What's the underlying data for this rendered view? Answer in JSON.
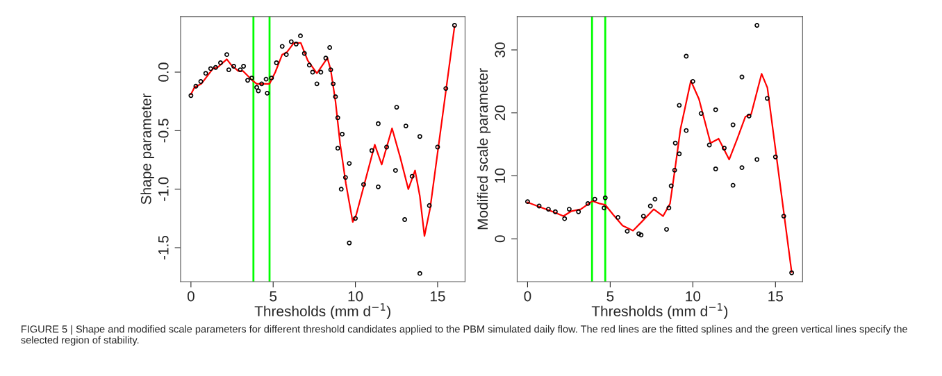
{
  "chart_data": [
    {
      "type": "scatter",
      "xlabel": "Thresholds (mm d$^{−1}$)",
      "ylabel": "Shape parameter",
      "xlim": [
        -0.63,
        16.67
      ],
      "ylim": [
        -1.79,
        0.475
      ],
      "xticks": [
        0,
        5,
        10,
        15
      ],
      "yticks": [
        {
          "value": -1.5,
          "label": "-1.5"
        },
        {
          "value": -1.0,
          "label": "-1.0"
        },
        {
          "value": -0.5,
          "label": "-0.5"
        },
        {
          "value": 0.0,
          "label": "0.0"
        }
      ],
      "grid": false,
      "legend": false,
      "series": [
        {
          "marker": "circle",
          "color": "#000000",
          "x": [
            0,
            0.3,
            0.6,
            0.9,
            1.2,
            1.5,
            1.8,
            2.18,
            2.3,
            2.6,
            3.0,
            3.2,
            3.45,
            3.7,
            4.0,
            4.1,
            4.3,
            4.57,
            4.64,
            4.9,
            5.2,
            5.55,
            5.8,
            6.1,
            6.4,
            6.66,
            6.9,
            7.2,
            7.4,
            7.66,
            7.9,
            8.2,
            8.44,
            8.5,
            8.65,
            8.79,
            8.93,
            8.93,
            9.2,
            9.14,
            9.4,
            9.63,
            9.63,
            10.0,
            10.5,
            11.0,
            11.39,
            11.39,
            11.9,
            12.51,
            12.44,
            13.07,
            13.0,
            13.45,
            13.92,
            13.92,
            14.5,
            15.0,
            15.5,
            16.03
          ],
          "values": [
            -0.2,
            -0.12,
            -0.08,
            -0.01,
            0.03,
            0.04,
            0.08,
            0.15,
            0.02,
            0.05,
            0.02,
            0.05,
            -0.07,
            -0.05,
            -0.13,
            -0.16,
            -0.1,
            -0.06,
            -0.18,
            -0.05,
            0.08,
            0.22,
            0.15,
            0.26,
            0.24,
            0.31,
            0.16,
            0.06,
            0.0,
            -0.1,
            0.0,
            0.12,
            0.21,
            0.02,
            -0.1,
            -0.21,
            -0.39,
            -0.65,
            -0.53,
            -1.0,
            -0.9,
            -0.78,
            -1.46,
            -1.25,
            -0.96,
            -0.67,
            -0.44,
            -0.98,
            -0.64,
            -0.3,
            -0.84,
            -0.46,
            -1.26,
            -0.89,
            -0.55,
            -1.72,
            -1.14,
            -0.64,
            -0.14,
            0.4
          ]
        },
        {
          "type": "line",
          "marker": "none",
          "color": "#ff0000",
          "x": [
            0,
            0.21,
            0.63,
            1.34,
            1.62,
            2.18,
            2.46,
            2.88,
            3.16,
            3.73,
            4.0,
            4.57,
            4.78,
            5.13,
            5.55,
            5.83,
            6.26,
            6.68,
            7.1,
            7.66,
            8.3,
            8.5,
            8.79,
            9.07,
            9.42,
            9.84,
            10.05,
            11.18,
            11.6,
            12.23,
            12.73,
            13.22,
            13.63,
            13.92,
            14.2,
            14.55,
            16.03
          ],
          "values": [
            -0.19,
            -0.13,
            -0.1,
            0.03,
            0.04,
            0.11,
            0.06,
            0.01,
            0.01,
            -0.07,
            -0.1,
            -0.1,
            -0.1,
            0.0,
            0.15,
            0.17,
            0.25,
            0.25,
            0.1,
            -0.01,
            0.12,
            0.02,
            -0.25,
            -0.61,
            -0.95,
            -1.28,
            -1.22,
            -0.62,
            -0.79,
            -0.48,
            -0.73,
            -1.0,
            -0.84,
            -1.06,
            -1.4,
            -1.16,
            0.39
          ]
        }
      ],
      "ref_lines": [
        {
          "axis": "x",
          "value": 3.8,
          "color": "#00ff00"
        },
        {
          "axis": "x",
          "value": 4.78,
          "color": "#00ff00"
        }
      ],
      "annotations": [
        "FIGURE 5 | Shape and modified scale parameters for different threshold candidates applied to the PBM simulated daily flow. The red lines are the fitted splines and the green vertical lines specify the selected region of stability."
      ]
    },
    {
      "type": "scatter",
      "xlabel": "Thresholds (mm d$^{−1}$)",
      "ylabel": "Modified scale parameter",
      "xlim": [
        -0.63,
        16.64
      ],
      "ylim": [
        -6.8,
        35.3
      ],
      "xticks": [
        0,
        5,
        10,
        15
      ],
      "yticks": [
        0,
        10,
        20,
        30
      ],
      "grid": false,
      "legend": false,
      "series": [
        {
          "marker": "circle",
          "color": "#000000",
          "x": [
            0,
            0.7,
            1.26,
            1.68,
            2.24,
            2.52,
            3.08,
            3.65,
            4.07,
            4.63,
            4.7,
            5.47,
            6.03,
            6.73,
            6.87,
            7.01,
            7.43,
            7.71,
            8.41,
            8.55,
            8.69,
            8.9,
            8.94,
            9.18,
            9.18,
            9.6,
            9.6,
            10.0,
            10.5,
            11.0,
            11.38,
            11.38,
            11.9,
            12.43,
            12.43,
            12.97,
            12.97,
            13.4,
            13.88,
            13.88,
            14.5,
            15.0,
            15.5,
            15.98
          ],
          "values": [
            5.9,
            5.2,
            4.7,
            4.3,
            3.2,
            4.7,
            4.3,
            5.6,
            6.3,
            4.9,
            6.5,
            3.4,
            1.2,
            0.8,
            0.6,
            3.6,
            5.2,
            6.3,
            1.5,
            4.9,
            8.4,
            10.9,
            15.2,
            13.5,
            21.2,
            17.2,
            29.0,
            25.0,
            19.9,
            14.9,
            11.1,
            20.5,
            14.4,
            8.5,
            18.1,
            11.3,
            25.7,
            19.5,
            12.6,
            33.9,
            22.3,
            13.0,
            3.6,
            -5.4
          ]
        },
        {
          "type": "line",
          "marker": "none",
          "color": "#ff0000",
          "x": [
            0,
            0.7,
            1.54,
            2.17,
            2.66,
            3.22,
            3.92,
            4.35,
            4.7,
            5.19,
            5.75,
            6.38,
            6.87,
            7.64,
            8.2,
            8.62,
            8.9,
            9.25,
            9.88,
            10.37,
            11.07,
            11.56,
            12.2,
            12.69,
            13.18,
            13.53,
            14.16,
            14.51,
            15.98
          ],
          "values": [
            5.8,
            5.1,
            4.3,
            3.6,
            4.4,
            4.7,
            6.0,
            5.6,
            5.4,
            3.8,
            2.1,
            1.3,
            2.6,
            4.7,
            3.6,
            5.6,
            10.7,
            17.4,
            25.1,
            22.2,
            15.2,
            15.9,
            12.6,
            15.9,
            19.4,
            19.8,
            26.2,
            24.0,
            -5.3
          ]
        }
      ],
      "ref_lines": [
        {
          "axis": "x",
          "value": 3.9,
          "color": "#00ff00"
        },
        {
          "axis": "x",
          "value": 4.7,
          "color": "#00ff00"
        }
      ]
    }
  ]
}
